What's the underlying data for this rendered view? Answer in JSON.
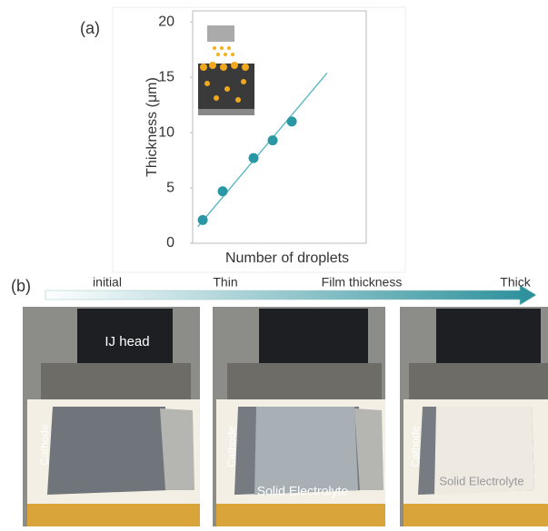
{
  "panel_a_label": "(a)",
  "chart_data": {
    "type": "scatter",
    "ylabel": "Thickness (μm)",
    "xlabel": "Number of droplets",
    "x": [
      0.58,
      1.73,
      3.51,
      4.61,
      5.71
    ],
    "series": [
      {
        "color": "#2a98a4",
        "values": [
          2.1,
          4.7,
          7.7,
          9.3,
          11.0
        ]
      }
    ],
    "fit": {
      "color": "#4fb3c0",
      "x": [
        0.3,
        7.75
      ],
      "values": [
        1.5,
        15.4
      ]
    },
    "xlim": [
      0,
      10
    ],
    "ylim": [
      0,
      21
    ],
    "yticks": [
      0,
      5,
      10,
      15,
      20
    ]
  },
  "panel_b": {
    "label": "(b)",
    "arrow_labels": [
      "initial",
      "Thin",
      "Film thickness",
      "Thick"
    ],
    "photos": [
      {
        "head": "IJ head",
        "cathode": "Cathode"
      },
      {
        "cathode": "Cathode",
        "electrolyte": "Solid Electrolyte"
      },
      {
        "cathode": "Cathode",
        "electrolyte": "Solid Electrolyte"
      }
    ]
  }
}
